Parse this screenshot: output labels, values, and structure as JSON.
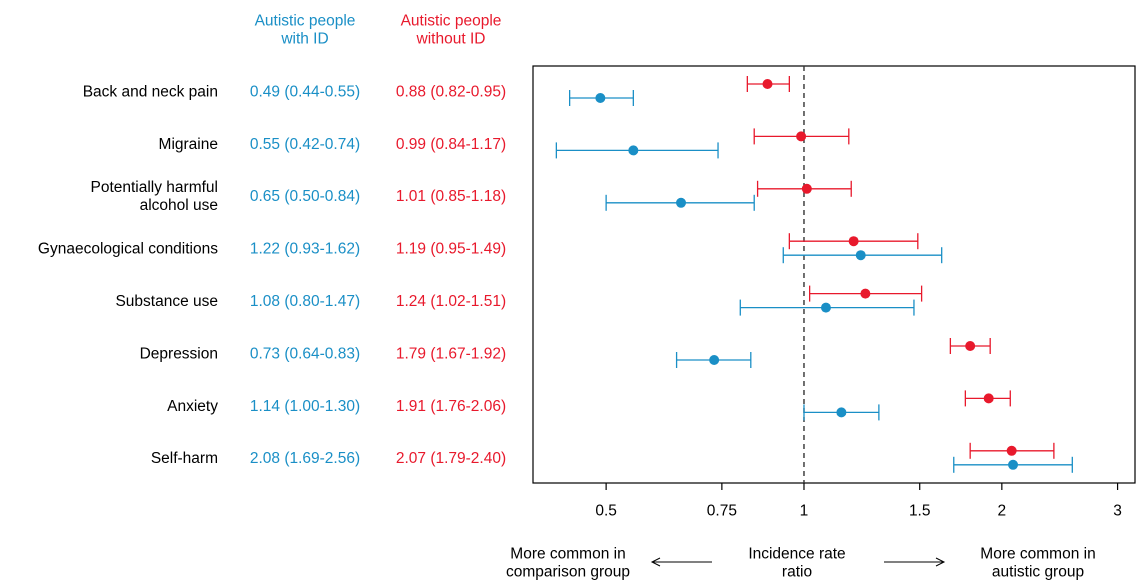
{
  "colors": {
    "with_id": "#1a8fc6",
    "without_id": "#e8192c",
    "text": "#000000",
    "reference_line": "#333333"
  },
  "chart_data": {
    "type": "forest",
    "x_scale": "log",
    "xlim": [
      0.387,
      3.2
    ],
    "reference_value": 1,
    "x_ticks": [
      {
        "value": 0.5,
        "label": "0.5"
      },
      {
        "value": 0.75,
        "label": "0.75"
      },
      {
        "value": 1,
        "label": "1"
      },
      {
        "value": 1.5,
        "label": "1.5"
      },
      {
        "value": 2,
        "label": "2"
      },
      {
        "value": 3,
        "label": "3"
      }
    ],
    "bottom_labels": {
      "left": [
        "More common in",
        "comparison group"
      ],
      "center": [
        "Incidence rate",
        "ratio"
      ],
      "right": [
        "More common in",
        "autistic group"
      ]
    },
    "series": [
      {
        "key": "with_id",
        "name": [
          "Autistic people",
          "with ID"
        ]
      },
      {
        "key": "without_id",
        "name": [
          "Autistic people",
          "without ID"
        ]
      }
    ],
    "rows": [
      {
        "label": [
          "Back and neck pain"
        ],
        "with_id": {
          "est": 0.49,
          "lo": 0.44,
          "hi": 0.55,
          "text": "0.49 (0.44-0.55)"
        },
        "without_id": {
          "est": 0.88,
          "lo": 0.82,
          "hi": 0.95,
          "text": "0.88 (0.82-0.95)"
        }
      },
      {
        "label": [
          "Migraine"
        ],
        "with_id": {
          "est": 0.55,
          "lo": 0.42,
          "hi": 0.74,
          "text": "0.55 (0.42-0.74)"
        },
        "without_id": {
          "est": 0.99,
          "lo": 0.84,
          "hi": 1.17,
          "text": "0.99 (0.84-1.17)"
        }
      },
      {
        "label": [
          "Potentially harmful",
          "alcohol use"
        ],
        "with_id": {
          "est": 0.65,
          "lo": 0.5,
          "hi": 0.84,
          "text": "0.65 (0.50-0.84)"
        },
        "without_id": {
          "est": 1.01,
          "lo": 0.85,
          "hi": 1.18,
          "text": "1.01 (0.85-1.18)"
        }
      },
      {
        "label": [
          "Gynaecological conditions"
        ],
        "with_id": {
          "est": 1.22,
          "lo": 0.93,
          "hi": 1.62,
          "text": "1.22 (0.93-1.62)"
        },
        "without_id": {
          "est": 1.19,
          "lo": 0.95,
          "hi": 1.49,
          "text": "1.19 (0.95-1.49)"
        }
      },
      {
        "label": [
          "Substance use"
        ],
        "with_id": {
          "est": 1.08,
          "lo": 0.8,
          "hi": 1.47,
          "text": "1.08 (0.80-1.47)"
        },
        "without_id": {
          "est": 1.24,
          "lo": 1.02,
          "hi": 1.51,
          "text": "1.24 (1.02-1.51)"
        }
      },
      {
        "label": [
          "Depression"
        ],
        "with_id": {
          "est": 0.73,
          "lo": 0.64,
          "hi": 0.83,
          "text": "0.73 (0.64-0.83)"
        },
        "without_id": {
          "est": 1.79,
          "lo": 1.67,
          "hi": 1.92,
          "text": "1.79 (1.67-1.92)"
        }
      },
      {
        "label": [
          "Anxiety"
        ],
        "with_id": {
          "est": 1.14,
          "lo": 1.0,
          "hi": 1.3,
          "text": "1.14 (1.00-1.30)"
        },
        "without_id": {
          "est": 1.91,
          "lo": 1.76,
          "hi": 2.06,
          "text": "1.91 (1.76-2.06)"
        }
      },
      {
        "label": [
          "Self-harm"
        ],
        "with_id": {
          "est": 2.08,
          "lo": 1.69,
          "hi": 2.56,
          "text": "2.08 (1.69-2.56)"
        },
        "without_id": {
          "est": 2.07,
          "lo": 1.79,
          "hi": 2.4,
          "text": "2.07 (1.79-2.40)"
        }
      }
    ]
  }
}
